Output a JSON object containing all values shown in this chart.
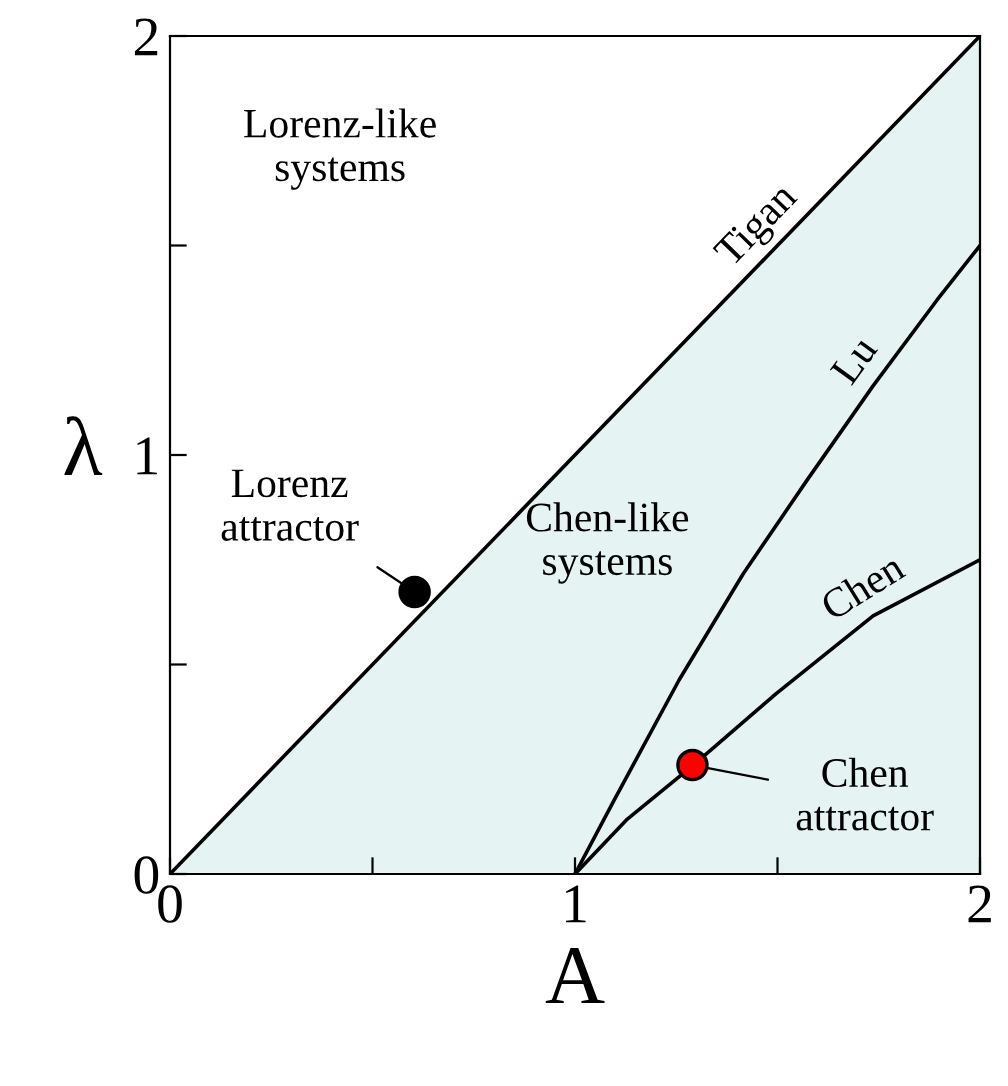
{
  "chart_data": {
    "type": "line",
    "xlabel": "A",
    "ylabel": "λ",
    "xlim": [
      0,
      2
    ],
    "ylim": [
      0,
      2
    ],
    "xticks": [
      0,
      {
        "value": 0.5,
        "label": null
      },
      1,
      {
        "value": 1.5,
        "label": null
      },
      2
    ],
    "yticks": [
      0,
      {
        "value": 0.5,
        "label": null
      },
      1,
      {
        "value": 1.5,
        "label": null
      },
      2
    ],
    "grid": false,
    "legend": false,
    "line_style": "solid",
    "series": [
      {
        "name": "Tigan",
        "type": "area",
        "color": "#e5f3f3",
        "x": [
          0,
          2
        ],
        "values": [
          0,
          2
        ]
      },
      {
        "name": "Lu",
        "color": "#000000",
        "x": [
          1,
          1.097,
          1.257,
          1.415,
          1.573,
          1.736,
          1.894,
          2
        ],
        "values": [
          0,
          0.177,
          0.463,
          0.716,
          0.94,
          1.165,
          1.37,
          1.5
        ]
      },
      {
        "name": "Chen",
        "color": "#000000",
        "x": [
          1,
          1.127,
          1.29,
          1.496,
          1.736,
          2
        ],
        "values": [
          0,
          0.129,
          0.258,
          0.43,
          0.616,
          0.75
        ]
      },
      {
        "type": "scatter",
        "color": "#000000",
        "x": [
          0.604
        ],
        "values": [
          0.673
        ]
      },
      {
        "type": "scatter",
        "color": "#ff0000",
        "x": [
          1.29
        ],
        "values": [
          0.26
        ]
      }
    ],
    "annotations": [
      "Lorenz-like\nsystems",
      "Chen-like\nsystems",
      {
        "text": "Lorenz\nattractor",
        "x": 0.604,
        "y": 0.673
      },
      {
        "text": "Chen\nattractor",
        "x": 1.29,
        "y": 0.26
      }
    ]
  }
}
